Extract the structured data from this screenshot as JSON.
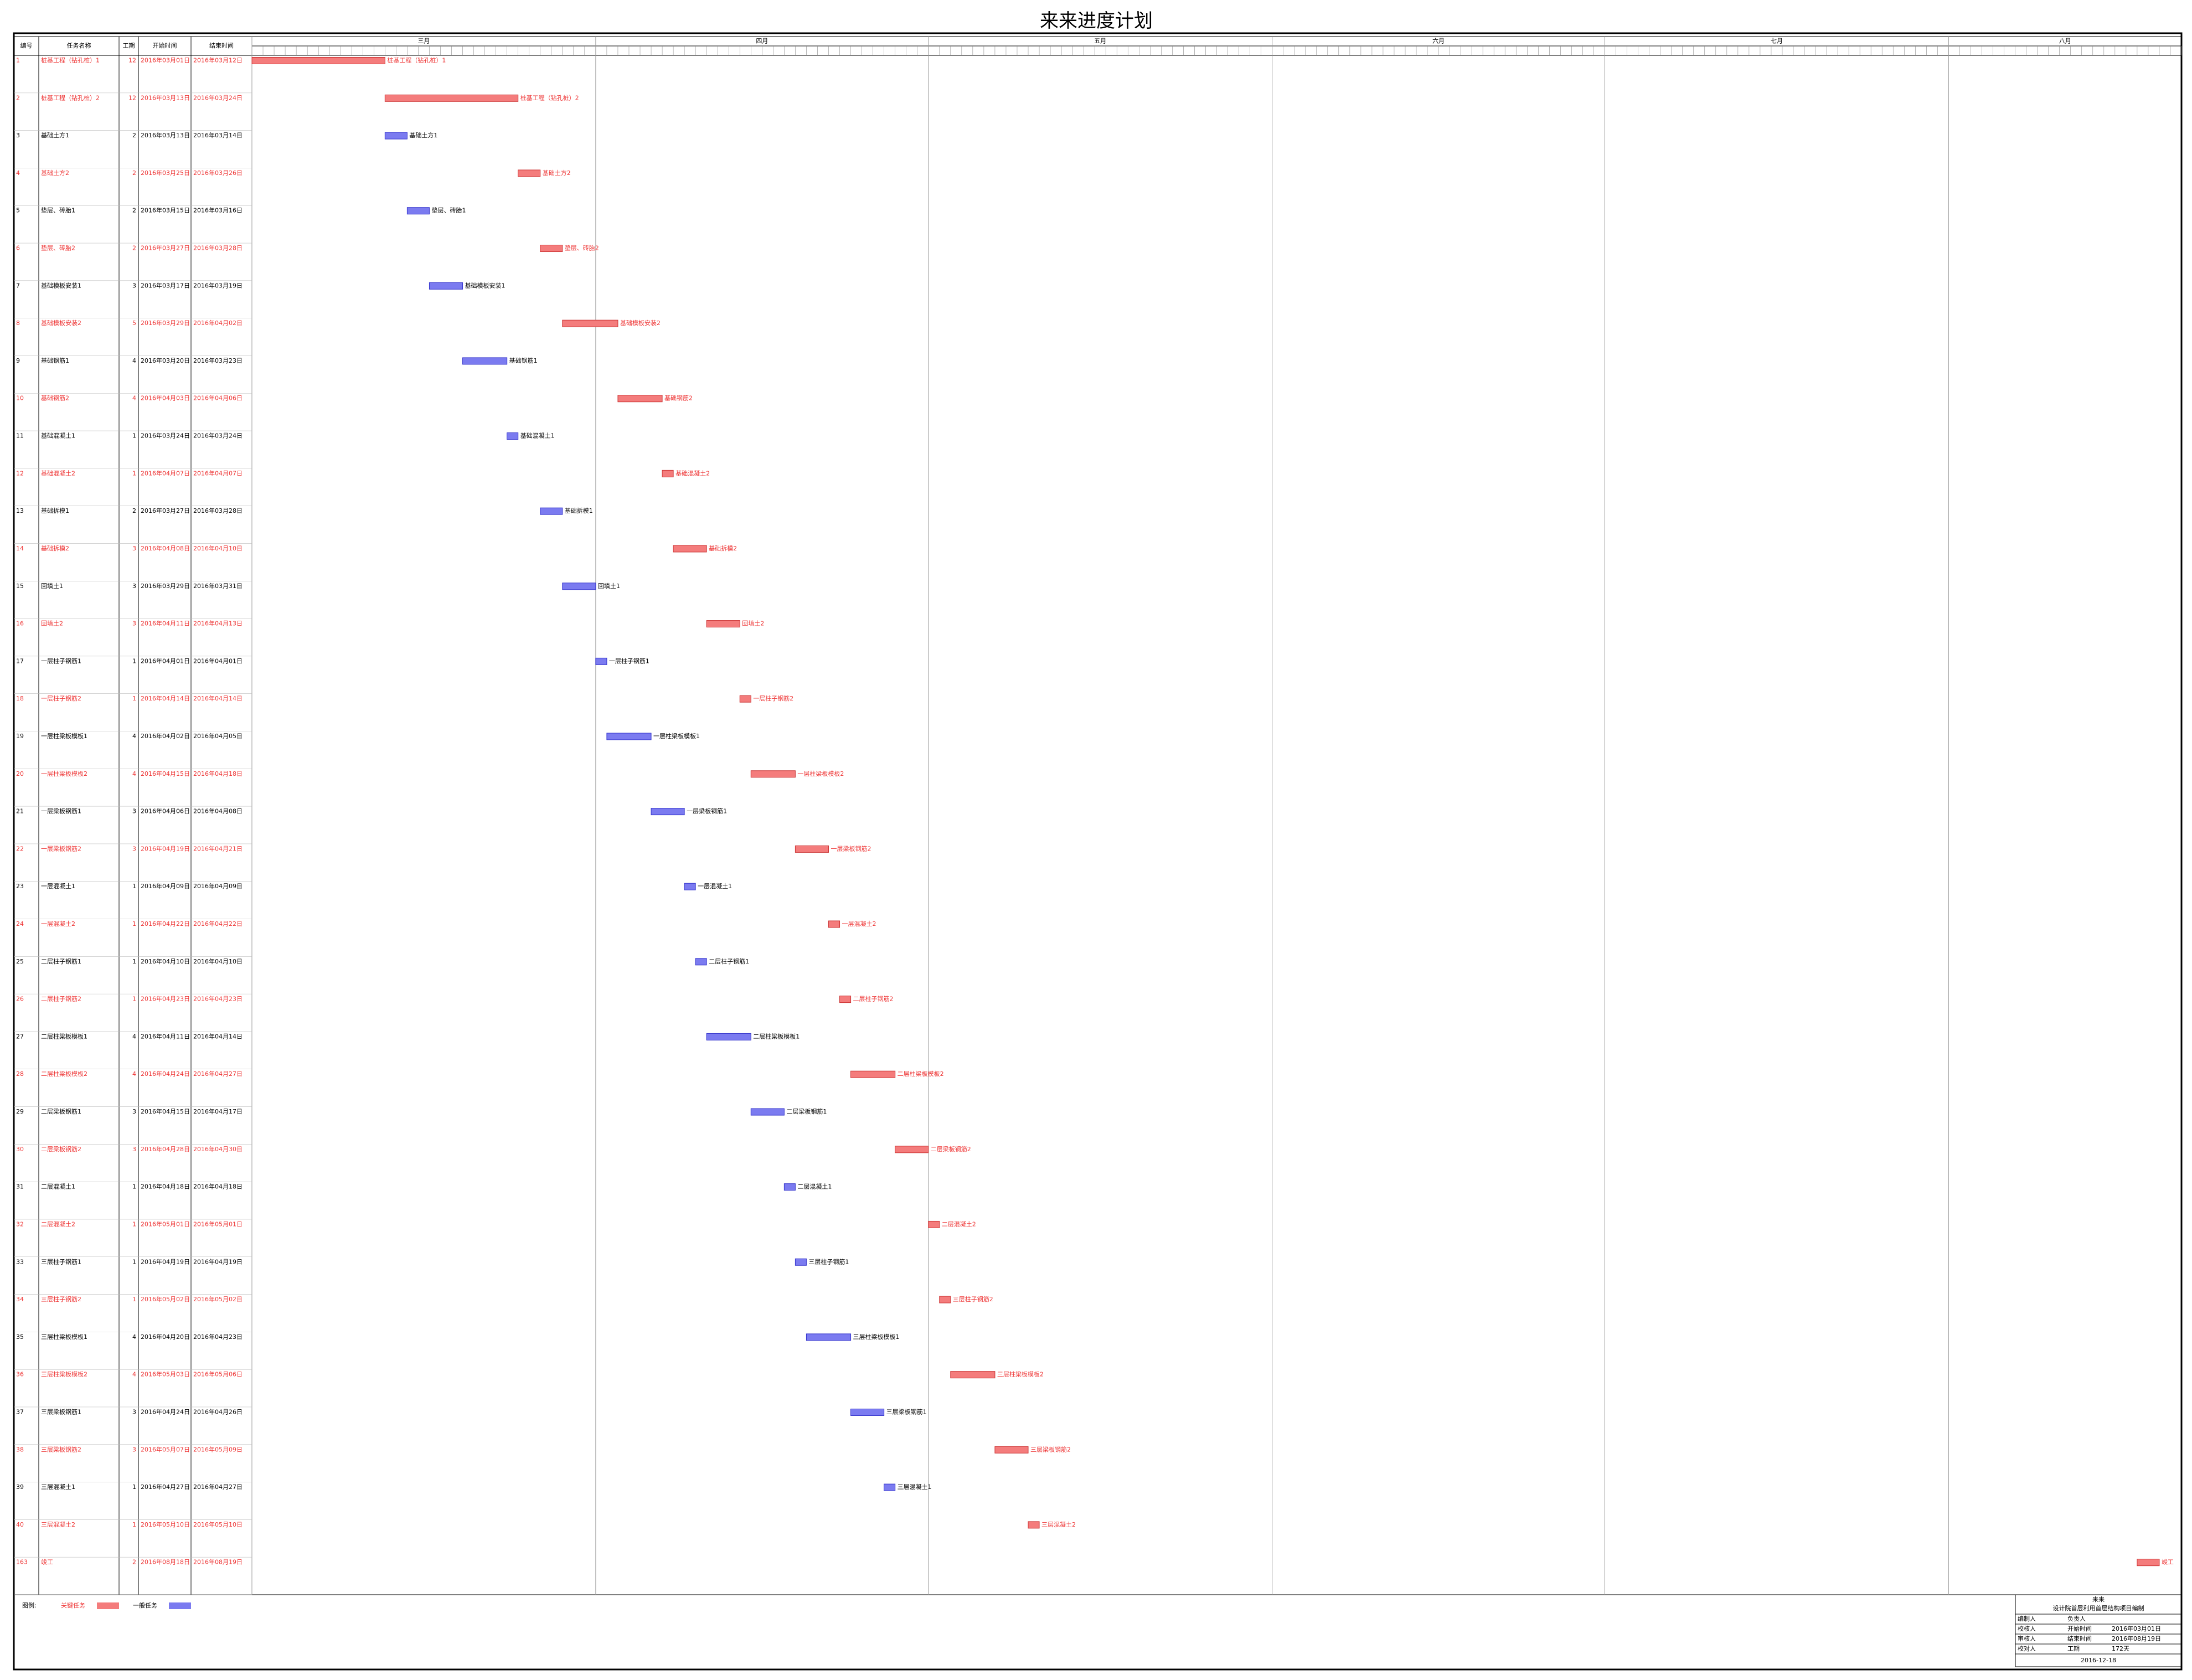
{
  "title": "来来进度计划",
  "columns": [
    "编号",
    "任务名称",
    "工期",
    "开始时间",
    "结束时间"
  ],
  "months": [
    {
      "label": "三月",
      "start": "2016年03月01日"
    },
    {
      "label": "四月",
      "start": "2016年04月01日"
    },
    {
      "label": "五月",
      "start": "2016年05月01日"
    },
    {
      "label": "六月",
      "start": "2016年06月01日"
    },
    {
      "label": "七月",
      "start": "2016年07月01日"
    },
    {
      "label": "八月",
      "start": "2016年08月01日"
    }
  ],
  "legend": {
    "title": "图例:",
    "critical": {
      "label": "关键任务",
      "color": "#f47c7c"
    },
    "normal": {
      "label": "一般任务",
      "color": "#7b7bf0"
    }
  },
  "tasks": [
    {
      "id": "1",
      "name": "桩基工程（钻孔桩）1",
      "duration": 12,
      "start": "2016年03月01日",
      "end": "2016年03月12日",
      "critical": true
    },
    {
      "id": "2",
      "name": "桩基工程（钻孔桩）2",
      "duration": 12,
      "start": "2016年03月13日",
      "end": "2016年03月24日",
      "critical": true
    },
    {
      "id": "3",
      "name": "基础土方1",
      "duration": 2,
      "start": "2016年03月13日",
      "end": "2016年03月14日",
      "critical": false
    },
    {
      "id": "4",
      "name": "基础土方2",
      "duration": 2,
      "start": "2016年03月25日",
      "end": "2016年03月26日",
      "critical": true
    },
    {
      "id": "5",
      "name": "垫层、砖胎1",
      "duration": 2,
      "start": "2016年03月15日",
      "end": "2016年03月16日",
      "critical": false
    },
    {
      "id": "6",
      "name": "垫层、砖胎2",
      "duration": 2,
      "start": "2016年03月27日",
      "end": "2016年03月28日",
      "critical": true
    },
    {
      "id": "7",
      "name": "基础模板安装1",
      "duration": 3,
      "start": "2016年03月17日",
      "end": "2016年03月19日",
      "critical": false
    },
    {
      "id": "8",
      "name": "基础模板安装2",
      "duration": 5,
      "start": "2016年03月29日",
      "end": "2016年04月02日",
      "critical": true
    },
    {
      "id": "9",
      "name": "基础钢筋1",
      "duration": 4,
      "start": "2016年03月20日",
      "end": "2016年03月23日",
      "critical": false
    },
    {
      "id": "10",
      "name": "基础钢筋2",
      "duration": 4,
      "start": "2016年04月03日",
      "end": "2016年04月06日",
      "critical": true
    },
    {
      "id": "11",
      "name": "基础混凝土1",
      "duration": 1,
      "start": "2016年03月24日",
      "end": "2016年03月24日",
      "critical": false
    },
    {
      "id": "12",
      "name": "基础混凝土2",
      "duration": 1,
      "start": "2016年04月07日",
      "end": "2016年04月07日",
      "critical": true
    },
    {
      "id": "13",
      "name": "基础拆模1",
      "duration": 2,
      "start": "2016年03月27日",
      "end": "2016年03月28日",
      "critical": false
    },
    {
      "id": "14",
      "name": "基础拆模2",
      "duration": 3,
      "start": "2016年04月08日",
      "end": "2016年04月10日",
      "critical": true
    },
    {
      "id": "15",
      "name": "回填土1",
      "duration": 3,
      "start": "2016年03月29日",
      "end": "2016年03月31日",
      "critical": false
    },
    {
      "id": "16",
      "name": "回填土2",
      "duration": 3,
      "start": "2016年04月11日",
      "end": "2016年04月13日",
      "critical": true
    },
    {
      "id": "17",
      "name": "一层柱子钢筋1",
      "duration": 1,
      "start": "2016年04月01日",
      "end": "2016年04月01日",
      "critical": false
    },
    {
      "id": "18",
      "name": "一层柱子钢筋2",
      "duration": 1,
      "start": "2016年04月14日",
      "end": "2016年04月14日",
      "critical": true
    },
    {
      "id": "19",
      "name": "一层柱梁板模板1",
      "duration": 4,
      "start": "2016年04月02日",
      "end": "2016年04月05日",
      "critical": false
    },
    {
      "id": "20",
      "name": "一层柱梁板模板2",
      "duration": 4,
      "start": "2016年04月15日",
      "end": "2016年04月18日",
      "critical": true
    },
    {
      "id": "21",
      "name": "一层梁板钢筋1",
      "duration": 3,
      "start": "2016年04月06日",
      "end": "2016年04月08日",
      "critical": false
    },
    {
      "id": "22",
      "name": "一层梁板钢筋2",
      "duration": 3,
      "start": "2016年04月19日",
      "end": "2016年04月21日",
      "critical": true
    },
    {
      "id": "23",
      "name": "一层混凝土1",
      "duration": 1,
      "start": "2016年04月09日",
      "end": "2016年04月09日",
      "critical": false
    },
    {
      "id": "24",
      "name": "一层混凝土2",
      "duration": 1,
      "start": "2016年04月22日",
      "end": "2016年04月22日",
      "critical": true
    },
    {
      "id": "25",
      "name": "二层柱子钢筋1",
      "duration": 1,
      "start": "2016年04月10日",
      "end": "2016年04月10日",
      "critical": false
    },
    {
      "id": "26",
      "name": "二层柱子钢筋2",
      "duration": 1,
      "start": "2016年04月23日",
      "end": "2016年04月23日",
      "critical": true
    },
    {
      "id": "27",
      "name": "二层柱梁板模板1",
      "duration": 4,
      "start": "2016年04月11日",
      "end": "2016年04月14日",
      "critical": false
    },
    {
      "id": "28",
      "name": "二层柱梁板模板2",
      "duration": 4,
      "start": "2016年04月24日",
      "end": "2016年04月27日",
      "critical": true
    },
    {
      "id": "29",
      "name": "二层梁板钢筋1",
      "duration": 3,
      "start": "2016年04月15日",
      "end": "2016年04月17日",
      "critical": false
    },
    {
      "id": "30",
      "name": "二层梁板钢筋2",
      "duration": 3,
      "start": "2016年04月28日",
      "end": "2016年04月30日",
      "critical": true
    },
    {
      "id": "31",
      "name": "二层混凝土1",
      "duration": 1,
      "start": "2016年04月18日",
      "end": "2016年04月18日",
      "critical": false
    },
    {
      "id": "32",
      "name": "二层混凝土2",
      "duration": 1,
      "start": "2016年05月01日",
      "end": "2016年05月01日",
      "critical": true
    },
    {
      "id": "33",
      "name": "三层柱子钢筋1",
      "duration": 1,
      "start": "2016年04月19日",
      "end": "2016年04月19日",
      "critical": false
    },
    {
      "id": "34",
      "name": "三层柱子钢筋2",
      "duration": 1,
      "start": "2016年05月02日",
      "end": "2016年05月02日",
      "critical": true
    },
    {
      "id": "35",
      "name": "三层柱梁板模板1",
      "duration": 4,
      "start": "2016年04月20日",
      "end": "2016年04月23日",
      "critical": false
    },
    {
      "id": "36",
      "name": "三层柱梁板模板2",
      "duration": 4,
      "start": "2016年05月03日",
      "end": "2016年05月06日",
      "critical": true
    },
    {
      "id": "37",
      "name": "三层梁板钢筋1",
      "duration": 3,
      "start": "2016年04月24日",
      "end": "2016年04月26日",
      "critical": false
    },
    {
      "id": "38",
      "name": "三层梁板钢筋2",
      "duration": 3,
      "start": "2016年05月07日",
      "end": "2016年05月09日",
      "critical": true
    },
    {
      "id": "39",
      "name": "三层混凝土1",
      "duration": 1,
      "start": "2016年04月27日",
      "end": "2016年04月27日",
      "critical": false
    },
    {
      "id": "40",
      "name": "三层混凝土2",
      "duration": 1,
      "start": "2016年05月10日",
      "end": "2016年05月10日",
      "critical": true
    },
    {
      "id": "163",
      "name": "竣工",
      "duration": 2,
      "start": "2016年08月18日",
      "end": "2016年08月19日",
      "critical": true
    }
  ],
  "footer": {
    "company": "来来",
    "project": "设计院首层利用首层结构项目编制",
    "rows": [
      [
        "编制人",
        "负责人",
        ""
      ],
      [
        "校核人",
        "开始时间",
        "2016年03月01日"
      ],
      [
        "审核人",
        "结束时间",
        "2016年08月19日"
      ],
      [
        "校对人",
        "工期",
        "172天"
      ]
    ],
    "date": "2016-12-18"
  }
}
